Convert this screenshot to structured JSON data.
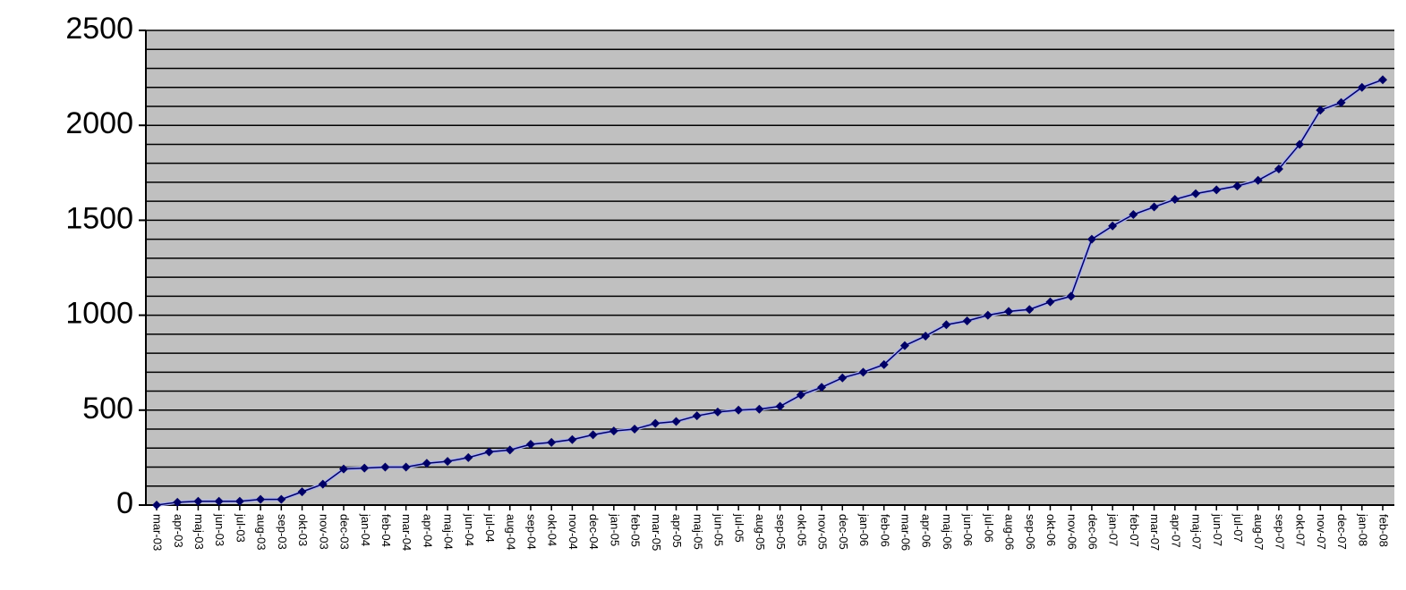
{
  "chart_data": {
    "type": "line",
    "categories": [
      "mar-03",
      "apr-03",
      "maj-03",
      "jun-03",
      "jul-03",
      "aug-03",
      "sep-03",
      "okt-03",
      "nov-03",
      "dec-03",
      "jan-04",
      "feb-04",
      "mar-04",
      "apr-04",
      "maj-04",
      "jun-04",
      "jul-04",
      "aug-04",
      "sep-04",
      "okt-04",
      "nov-04",
      "dec-04",
      "jan-05",
      "feb-05",
      "mar-05",
      "apr-05",
      "maj-05",
      "jun-05",
      "jul-05",
      "aug-05",
      "sep-05",
      "okt-05",
      "nov-05",
      "dec-05",
      "jan-06",
      "feb-06",
      "mar-06",
      "apr-06",
      "maj-06",
      "jun-06",
      "jul-06",
      "aug-06",
      "sep-06",
      "okt-06",
      "nov-06",
      "dec-06",
      "jan-07",
      "feb-07",
      "mar-07",
      "apr-07",
      "maj-07",
      "jun-07",
      "jul-07",
      "aug-07",
      "sep-07",
      "okt-07",
      "nov-07",
      "dec-07",
      "jan-08",
      "feb-08"
    ],
    "values": [
      0,
      15,
      20,
      20,
      20,
      30,
      30,
      70,
      110,
      190,
      195,
      200,
      200,
      220,
      230,
      250,
      280,
      290,
      320,
      330,
      345,
      370,
      390,
      400,
      430,
      440,
      470,
      490,
      500,
      505,
      520,
      580,
      620,
      670,
      700,
      740,
      840,
      890,
      950,
      970,
      1000,
      1020,
      1030,
      1070,
      1100,
      1400,
      1470,
      1530,
      1570,
      1610,
      1640,
      1660,
      1680,
      1710,
      1770,
      1900,
      2080,
      2120,
      2200,
      2240
    ],
    "color": "#000066",
    "ylim": [
      0,
      2500
    ],
    "yticks": [
      0,
      500,
      1000,
      1500,
      2000,
      2500
    ],
    "ygrid": [
      0,
      100,
      200,
      300,
      400,
      500,
      600,
      700,
      800,
      900,
      1000,
      1100,
      1200,
      1300,
      1400,
      1500,
      1600,
      1700,
      1800,
      1900,
      2000,
      2100,
      2200,
      2300,
      2400,
      2500
    ],
    "grid": true
  }
}
